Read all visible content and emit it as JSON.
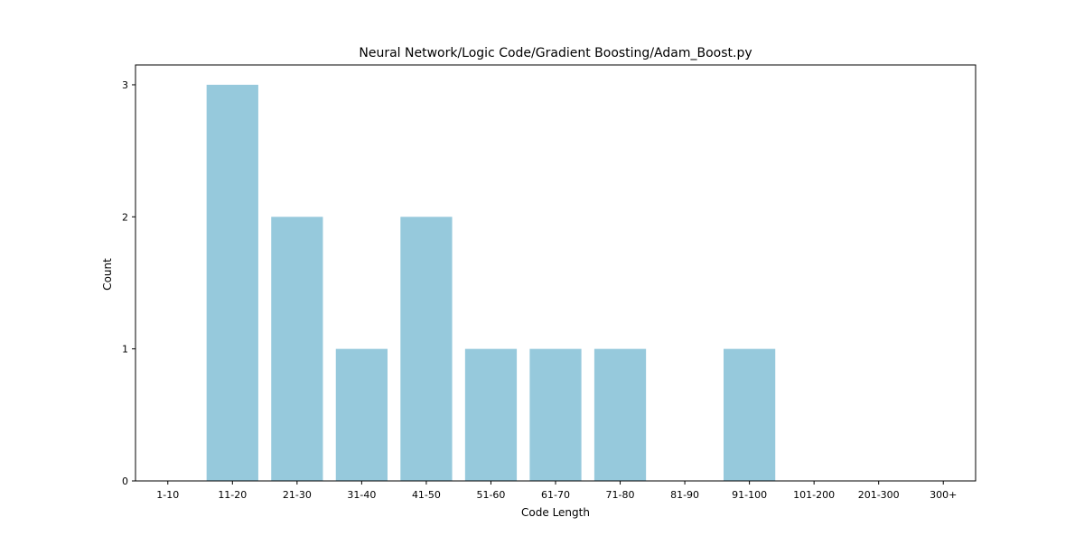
{
  "chart_data": {
    "type": "bar",
    "title": "Neural Network/Logic Code/Gradient Boosting/Adam_Boost.py",
    "xlabel": "Code Length",
    "ylabel": "Count",
    "categories": [
      "1-10",
      "11-20",
      "21-30",
      "31-40",
      "41-50",
      "51-60",
      "61-70",
      "71-80",
      "81-90",
      "91-100",
      "101-200",
      "201-300",
      "300+"
    ],
    "values": [
      0,
      3,
      2,
      1,
      2,
      1,
      1,
      1,
      0,
      1,
      0,
      0,
      0
    ],
    "yticks": [
      "0",
      "1",
      "2",
      "3"
    ],
    "ylim": [
      0,
      3.15
    ],
    "bar_color": "#96c9dc",
    "grid": false,
    "legend": "none"
  }
}
